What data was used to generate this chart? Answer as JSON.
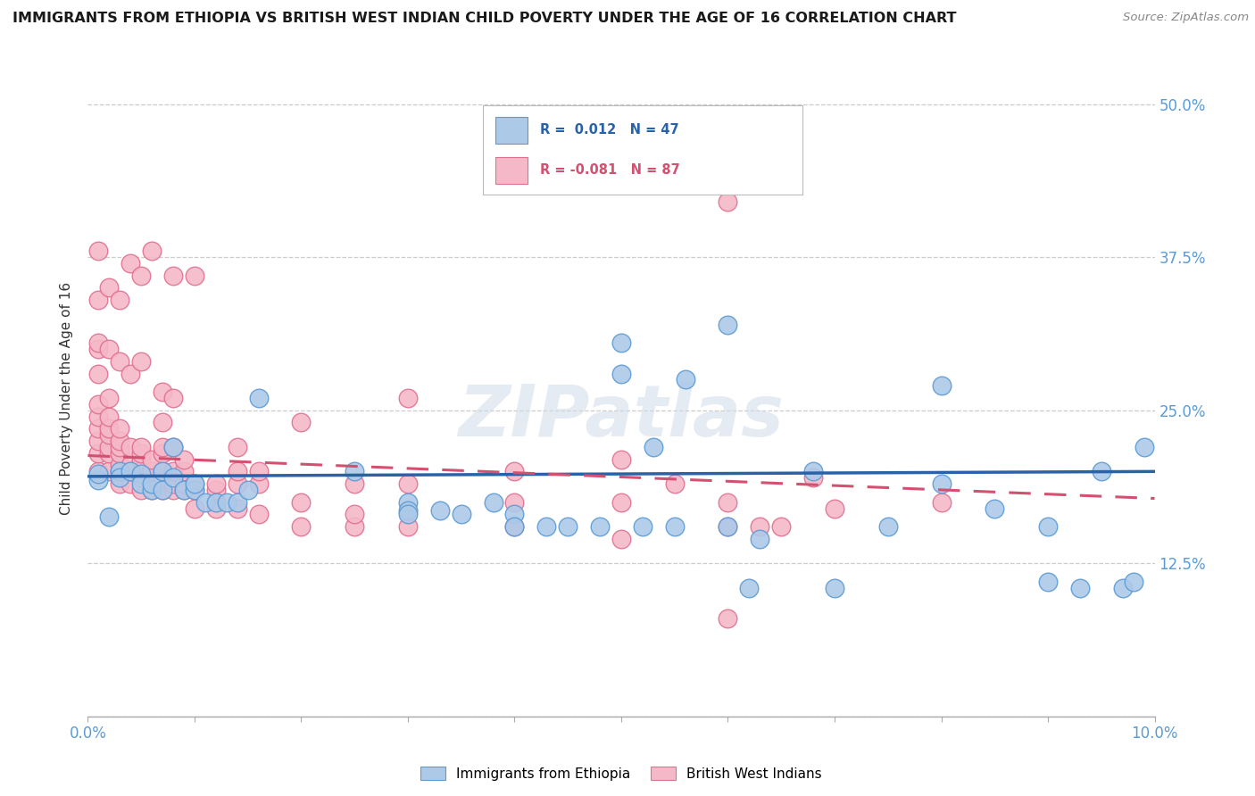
{
  "title": "IMMIGRANTS FROM ETHIOPIA VS BRITISH WEST INDIAN CHILD POVERTY UNDER THE AGE OF 16 CORRELATION CHART",
  "source": "Source: ZipAtlas.com",
  "ylabel_label": "Child Poverty Under the Age of 16",
  "legend_blue_label": "Immigrants from Ethiopia",
  "legend_pink_label": "British West Indians",
  "watermark": "ZIPatlas",
  "blue_color": "#adc9e8",
  "blue_edge_color": "#5b9bd5",
  "pink_color": "#f5b8c8",
  "pink_edge_color": "#e07090",
  "blue_line_color": "#2962a8",
  "pink_line_color": "#d45070",
  "tick_color": "#5b9bd5",
  "background_color": "#ffffff",
  "grid_color": "#cccccc",
  "blue_points": [
    [
      0.001,
      0.193
    ],
    [
      0.002,
      0.163
    ],
    [
      0.001,
      0.198
    ],
    [
      0.003,
      0.2
    ],
    [
      0.003,
      0.195
    ],
    [
      0.004,
      0.2
    ],
    [
      0.005,
      0.198
    ],
    [
      0.005,
      0.19
    ],
    [
      0.006,
      0.185
    ],
    [
      0.006,
      0.19
    ],
    [
      0.007,
      0.2
    ],
    [
      0.007,
      0.185
    ],
    [
      0.008,
      0.195
    ],
    [
      0.008,
      0.22
    ],
    [
      0.009,
      0.185
    ],
    [
      0.01,
      0.185
    ],
    [
      0.01,
      0.19
    ],
    [
      0.011,
      0.175
    ],
    [
      0.012,
      0.175
    ],
    [
      0.013,
      0.175
    ],
    [
      0.014,
      0.175
    ],
    [
      0.015,
      0.185
    ],
    [
      0.016,
      0.26
    ],
    [
      0.025,
      0.2
    ],
    [
      0.03,
      0.175
    ],
    [
      0.03,
      0.168
    ],
    [
      0.03,
      0.165
    ],
    [
      0.033,
      0.168
    ],
    [
      0.035,
      0.165
    ],
    [
      0.038,
      0.175
    ],
    [
      0.04,
      0.165
    ],
    [
      0.04,
      0.155
    ],
    [
      0.043,
      0.155
    ],
    [
      0.045,
      0.155
    ],
    [
      0.048,
      0.155
    ],
    [
      0.05,
      0.28
    ],
    [
      0.05,
      0.305
    ],
    [
      0.052,
      0.155
    ],
    [
      0.053,
      0.22
    ],
    [
      0.055,
      0.155
    ],
    [
      0.056,
      0.275
    ],
    [
      0.06,
      0.32
    ],
    [
      0.06,
      0.155
    ],
    [
      0.062,
      0.105
    ],
    [
      0.063,
      0.145
    ],
    [
      0.065,
      0.45
    ],
    [
      0.068,
      0.2
    ],
    [
      0.07,
      0.105
    ],
    [
      0.075,
      0.155
    ],
    [
      0.08,
      0.19
    ],
    [
      0.08,
      0.27
    ],
    [
      0.085,
      0.17
    ],
    [
      0.09,
      0.155
    ],
    [
      0.09,
      0.11
    ],
    [
      0.093,
      0.105
    ],
    [
      0.095,
      0.2
    ],
    [
      0.097,
      0.105
    ],
    [
      0.098,
      0.11
    ],
    [
      0.099,
      0.22
    ]
  ],
  "pink_points": [
    [
      0.001,
      0.2
    ],
    [
      0.001,
      0.215
    ],
    [
      0.001,
      0.225
    ],
    [
      0.001,
      0.235
    ],
    [
      0.001,
      0.245
    ],
    [
      0.001,
      0.255
    ],
    [
      0.001,
      0.28
    ],
    [
      0.001,
      0.3
    ],
    [
      0.001,
      0.305
    ],
    [
      0.001,
      0.34
    ],
    [
      0.001,
      0.38
    ],
    [
      0.002,
      0.2
    ],
    [
      0.002,
      0.215
    ],
    [
      0.002,
      0.22
    ],
    [
      0.002,
      0.23
    ],
    [
      0.002,
      0.235
    ],
    [
      0.002,
      0.245
    ],
    [
      0.002,
      0.26
    ],
    [
      0.002,
      0.3
    ],
    [
      0.002,
      0.35
    ],
    [
      0.003,
      0.19
    ],
    [
      0.003,
      0.2
    ],
    [
      0.003,
      0.205
    ],
    [
      0.003,
      0.215
    ],
    [
      0.003,
      0.22
    ],
    [
      0.003,
      0.225
    ],
    [
      0.003,
      0.235
    ],
    [
      0.003,
      0.29
    ],
    [
      0.003,
      0.34
    ],
    [
      0.004,
      0.19
    ],
    [
      0.004,
      0.2
    ],
    [
      0.004,
      0.205
    ],
    [
      0.004,
      0.22
    ],
    [
      0.004,
      0.28
    ],
    [
      0.004,
      0.37
    ],
    [
      0.005,
      0.185
    ],
    [
      0.005,
      0.195
    ],
    [
      0.005,
      0.2
    ],
    [
      0.005,
      0.21
    ],
    [
      0.005,
      0.215
    ],
    [
      0.005,
      0.22
    ],
    [
      0.005,
      0.29
    ],
    [
      0.005,
      0.36
    ],
    [
      0.006,
      0.185
    ],
    [
      0.006,
      0.195
    ],
    [
      0.006,
      0.2
    ],
    [
      0.006,
      0.21
    ],
    [
      0.006,
      0.38
    ],
    [
      0.007,
      0.185
    ],
    [
      0.007,
      0.195
    ],
    [
      0.007,
      0.2
    ],
    [
      0.007,
      0.215
    ],
    [
      0.007,
      0.22
    ],
    [
      0.007,
      0.24
    ],
    [
      0.007,
      0.265
    ],
    [
      0.008,
      0.185
    ],
    [
      0.008,
      0.19
    ],
    [
      0.008,
      0.2
    ],
    [
      0.008,
      0.22
    ],
    [
      0.008,
      0.26
    ],
    [
      0.008,
      0.36
    ],
    [
      0.009,
      0.185
    ],
    [
      0.009,
      0.19
    ],
    [
      0.009,
      0.2
    ],
    [
      0.009,
      0.21
    ],
    [
      0.01,
      0.17
    ],
    [
      0.01,
      0.185
    ],
    [
      0.01,
      0.19
    ],
    [
      0.01,
      0.36
    ],
    [
      0.012,
      0.17
    ],
    [
      0.012,
      0.185
    ],
    [
      0.012,
      0.19
    ],
    [
      0.014,
      0.17
    ],
    [
      0.014,
      0.19
    ],
    [
      0.014,
      0.2
    ],
    [
      0.014,
      0.22
    ],
    [
      0.016,
      0.165
    ],
    [
      0.016,
      0.19
    ],
    [
      0.016,
      0.2
    ],
    [
      0.02,
      0.155
    ],
    [
      0.02,
      0.175
    ],
    [
      0.02,
      0.24
    ],
    [
      0.025,
      0.155
    ],
    [
      0.025,
      0.165
    ],
    [
      0.025,
      0.19
    ],
    [
      0.03,
      0.155
    ],
    [
      0.03,
      0.19
    ],
    [
      0.03,
      0.26
    ],
    [
      0.04,
      0.155
    ],
    [
      0.04,
      0.175
    ],
    [
      0.04,
      0.2
    ],
    [
      0.05,
      0.145
    ],
    [
      0.05,
      0.175
    ],
    [
      0.05,
      0.21
    ],
    [
      0.055,
      0.19
    ],
    [
      0.06,
      0.08
    ],
    [
      0.06,
      0.155
    ],
    [
      0.06,
      0.175
    ],
    [
      0.06,
      0.42
    ],
    [
      0.063,
      0.155
    ],
    [
      0.065,
      0.155
    ],
    [
      0.068,
      0.195
    ],
    [
      0.07,
      0.17
    ],
    [
      0.08,
      0.175
    ]
  ],
  "blue_trend_x": [
    0.0,
    0.1
  ],
  "blue_trend_y": [
    0.196,
    0.2
  ],
  "pink_trend_x": [
    0.0,
    0.1
  ],
  "pink_trend_y": [
    0.213,
    0.178
  ],
  "xlim": [
    0.0,
    0.1
  ],
  "ylim": [
    0.0,
    0.52
  ],
  "xticks": [
    0.0,
    0.01,
    0.02,
    0.03,
    0.04,
    0.05,
    0.06,
    0.07,
    0.08,
    0.09,
    0.1
  ],
  "yticks": [
    0.0,
    0.125,
    0.25,
    0.375,
    0.5
  ],
  "right_ytick_labels": [
    "",
    "12.5%",
    "25.0%",
    "37.5%",
    "50.0%"
  ],
  "xtick_labels_show": [
    "0.0%",
    "",
    "",
    "",
    "",
    "",
    "",
    "",
    "",
    "",
    "10.0%"
  ]
}
